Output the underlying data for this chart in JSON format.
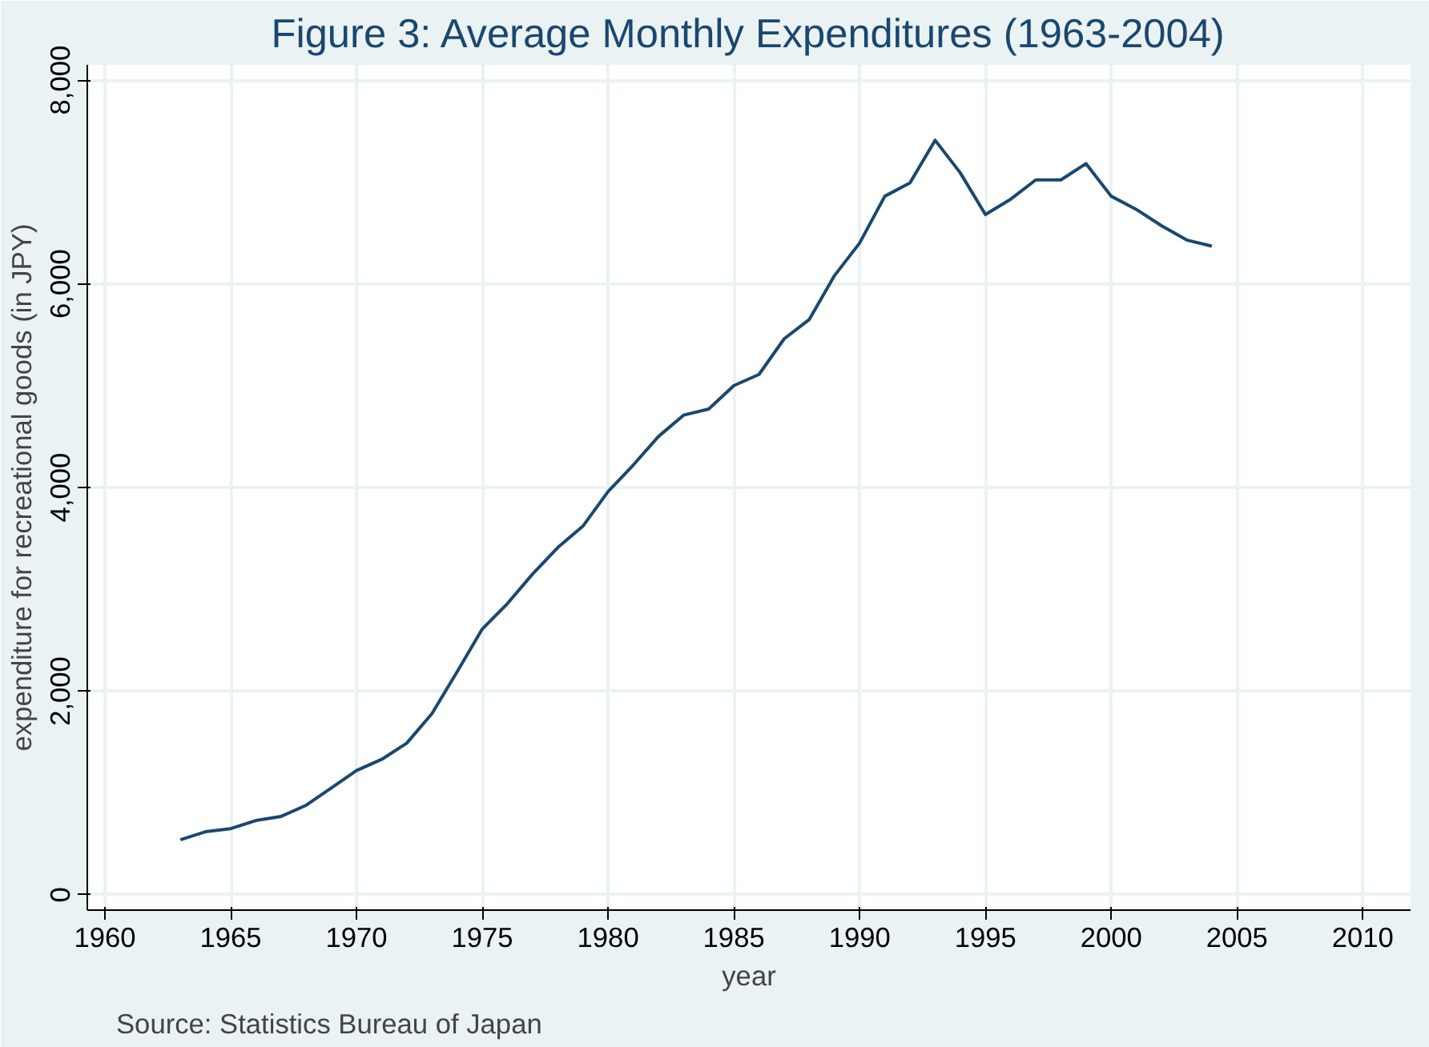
{
  "chart_data": {
    "type": "line",
    "title": "Figure 3: Average Monthly Expenditures (1963-2004)",
    "xlabel": "year",
    "ylabel": "expenditure for recreational goods (in JPY)",
    "annotations": [
      "Source: Statistics Bureau of Japan"
    ],
    "x": [
      1963,
      1964,
      1965,
      1966,
      1967,
      1968,
      1969,
      1970,
      1971,
      1972,
      1973,
      1974,
      1975,
      1976,
      1977,
      1978,
      1979,
      1980,
      1981,
      1982,
      1983,
      1984,
      1985,
      1986,
      1987,
      1988,
      1989,
      1990,
      1991,
      1992,
      1993,
      1994,
      1995,
      1996,
      1997,
      1998,
      1999,
      2000,
      2001,
      2002,
      2003,
      2004
    ],
    "series": [
      {
        "color": "#1a476f",
        "values": [
          540,
          620,
          650,
          730,
          770,
          880,
          1050,
          1220,
          1330,
          1490,
          1780,
          2190,
          2610,
          2860,
          3150,
          3410,
          3620,
          3960,
          4220,
          4500,
          4710,
          4770,
          5000,
          5110,
          5460,
          5650,
          6080,
          6400,
          6860,
          6990,
          7410,
          7090,
          6680,
          6830,
          7020,
          7020,
          7180,
          6860,
          6730,
          6570,
          6430,
          6370
        ]
      }
    ],
    "xlim": [
      1959.3,
      2011.9
    ],
    "xticks": [
      1960,
      1965,
      1970,
      1975,
      1980,
      1985,
      1990,
      1995,
      2000,
      2005,
      2010
    ],
    "ylim": [
      -150,
      8150
    ],
    "yticks": [
      {
        "value": 0,
        "label": "0"
      },
      {
        "value": 2000,
        "label": "2,000"
      },
      {
        "value": 4000,
        "label": "4,000"
      },
      {
        "value": 6000,
        "label": "6,000"
      },
      {
        "value": 8000,
        "label": "8,000"
      }
    ],
    "grid": true,
    "line_style": "solid",
    "marker": "none"
  }
}
